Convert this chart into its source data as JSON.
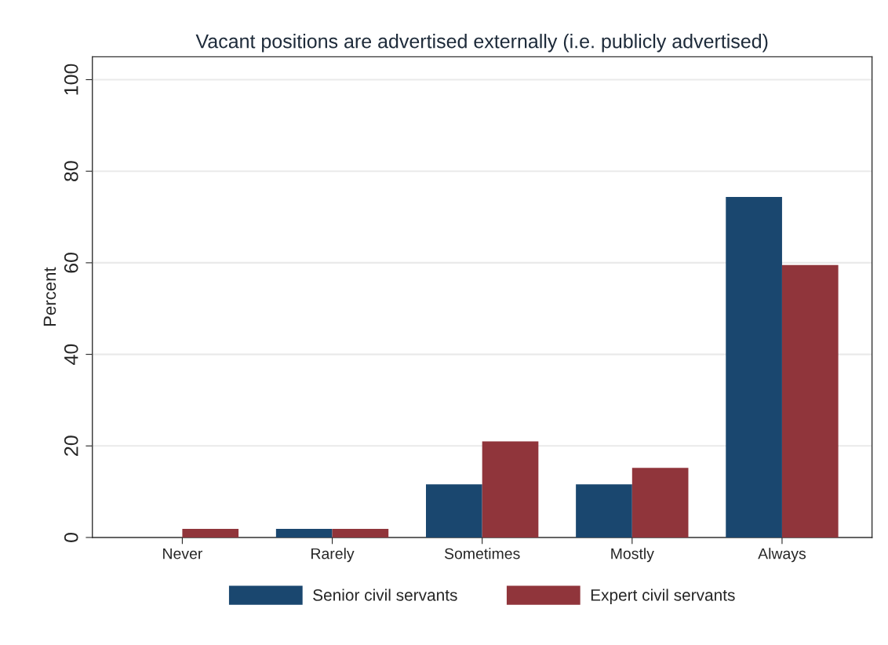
{
  "chart_data": {
    "type": "bar",
    "title": "Vacant positions are advertised externally (i.e. publicly advertised)",
    "ylabel": "Percent",
    "categories": [
      "Never",
      "Rarely",
      "Sometimes",
      "Mostly",
      "Always"
    ],
    "series": [
      {
        "name": "Senior civil servants",
        "color": "#1a476f",
        "values": [
          0,
          1.9,
          11.6,
          11.6,
          74.4
        ]
      },
      {
        "name": "Expert civil servants",
        "color": "#90353b",
        "values": [
          1.9,
          1.9,
          21.0,
          15.2,
          59.5
        ]
      }
    ],
    "ylim": [
      0,
      105
    ],
    "yticks": [
      0,
      20,
      40,
      60,
      80,
      100
    ],
    "grid": "y",
    "legend": "bottom"
  }
}
